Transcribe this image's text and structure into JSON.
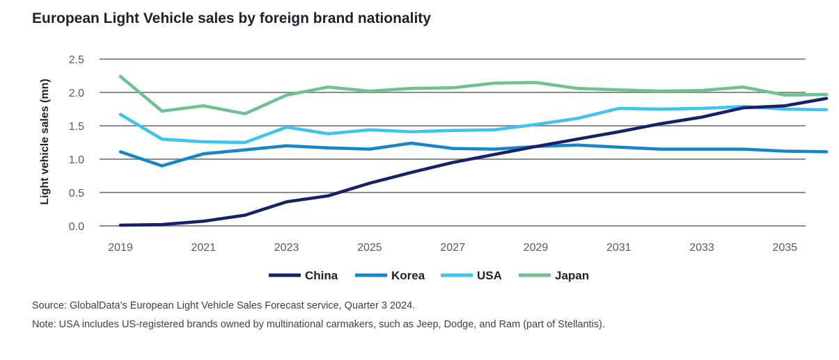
{
  "chart_data": {
    "type": "line",
    "title": "European Light Vehicle sales by foreign brand nationality",
    "xlabel": "",
    "ylabel": "Light vehicle sales (mn)",
    "xlim": [
      2019,
      2036
    ],
    "ylim": [
      0,
      2.5
    ],
    "x_ticks": [
      "2019",
      "2021",
      "2023",
      "2025",
      "2027",
      "2029",
      "2031",
      "2033",
      "2035"
    ],
    "y_ticks": [
      "0.0",
      "0.5",
      "1.0",
      "1.5",
      "2.0",
      "2.5"
    ],
    "grid": "horizontal",
    "legend_position": "bottom",
    "x": [
      2019,
      2020,
      2021,
      2022,
      2023,
      2024,
      2025,
      2026,
      2027,
      2028,
      2029,
      2030,
      2031,
      2032,
      2033,
      2034,
      2035,
      2036
    ],
    "series": [
      {
        "name": "China",
        "color": "#16206b",
        "values": [
          0.01,
          0.02,
          0.07,
          0.16,
          0.36,
          0.45,
          0.64,
          0.8,
          0.95,
          1.07,
          1.19,
          1.3,
          1.41,
          1.53,
          1.63,
          1.77,
          1.8,
          1.91
        ]
      },
      {
        "name": "Korea",
        "color": "#1586c9",
        "values": [
          1.11,
          0.9,
          1.08,
          1.14,
          1.2,
          1.17,
          1.15,
          1.24,
          1.16,
          1.15,
          1.19,
          1.21,
          1.18,
          1.15,
          1.15,
          1.15,
          1.12,
          1.11
        ]
      },
      {
        "name": "USA",
        "color": "#3ec3f3",
        "values": [
          1.67,
          1.3,
          1.26,
          1.25,
          1.48,
          1.38,
          1.44,
          1.41,
          1.43,
          1.44,
          1.52,
          1.61,
          1.76,
          1.75,
          1.76,
          1.79,
          1.75,
          1.74
        ]
      },
      {
        "name": "Japan",
        "color": "#6dc291",
        "values": [
          2.24,
          1.72,
          1.8,
          1.68,
          1.96,
          2.08,
          2.02,
          2.06,
          2.07,
          2.14,
          2.15,
          2.06,
          2.04,
          2.02,
          2.03,
          2.08,
          1.96,
          1.97
        ]
      }
    ]
  },
  "notes": {
    "source": "Source: GlobalData’s European Light Vehicle Sales Forecast service, Quarter 3 2024.",
    "usa": "Note: USA includes US-registered brands owned by multinational carmakers, such as Jeep, Dodge, and Ram (part of Stellantis)."
  }
}
